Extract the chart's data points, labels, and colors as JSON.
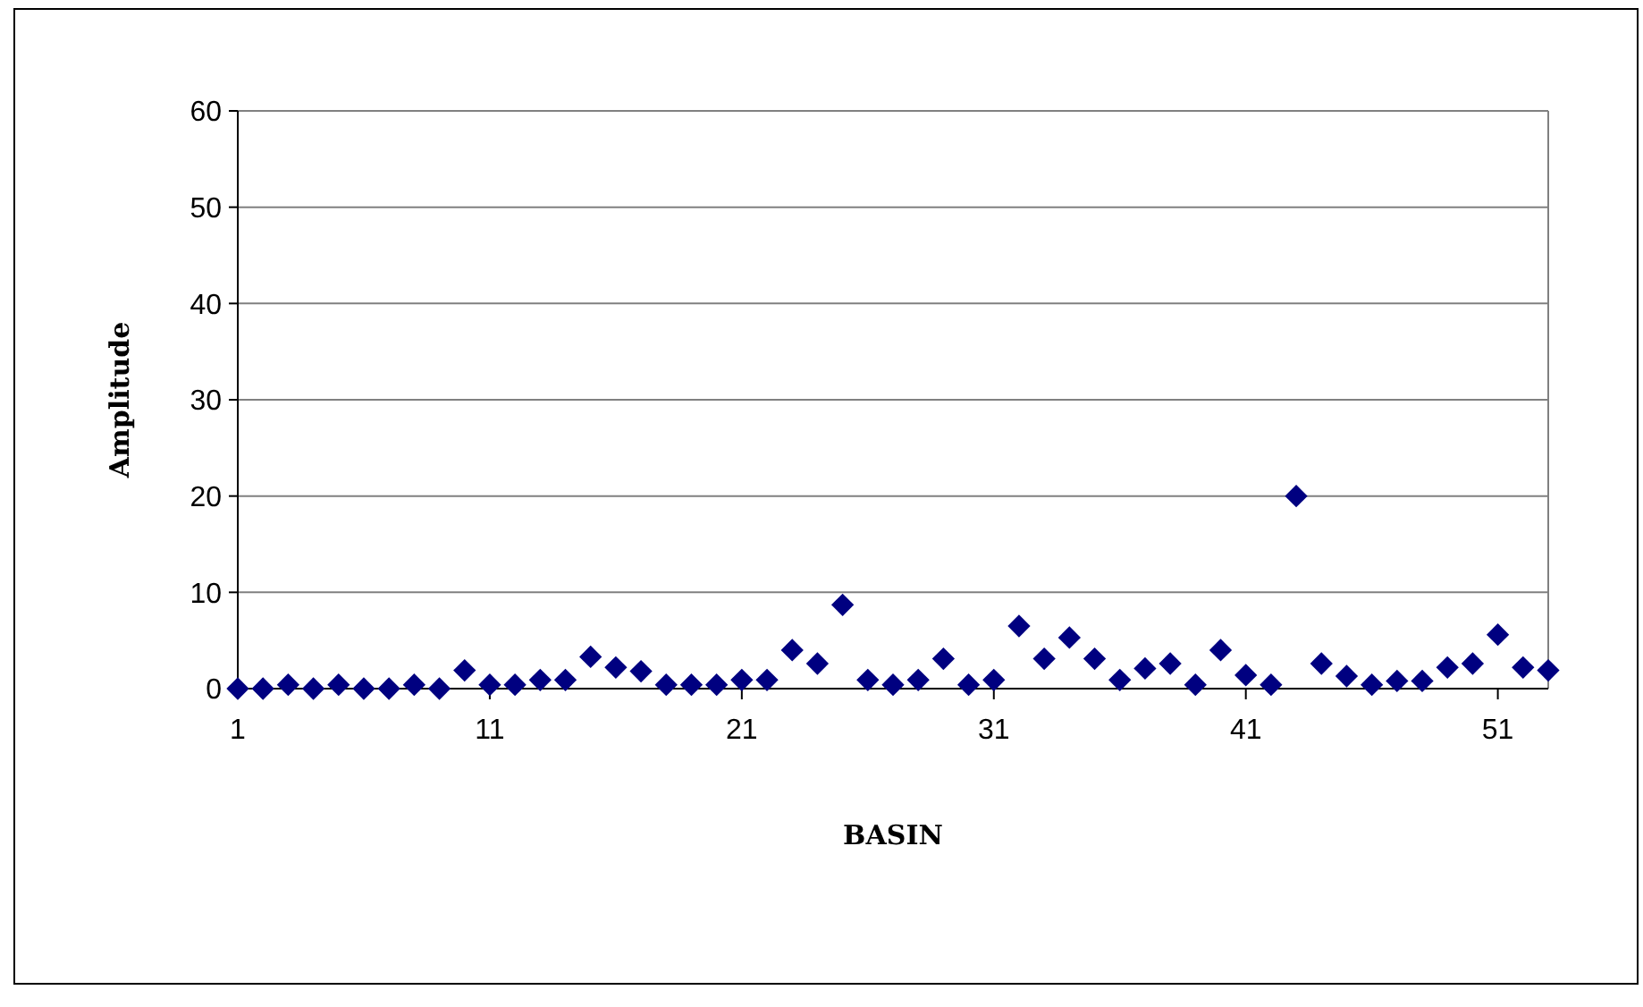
{
  "chart_data": {
    "type": "scatter",
    "xlabel": "BASIN",
    "ylabel": "Amplitude",
    "categories": [
      "1",
      null,
      null,
      null,
      null,
      null,
      null,
      null,
      null,
      null,
      "11",
      null,
      null,
      null,
      null,
      null,
      null,
      null,
      null,
      null,
      "21",
      null,
      null,
      null,
      null,
      null,
      null,
      null,
      null,
      null,
      "31",
      null,
      null,
      null,
      null,
      null,
      null,
      null,
      null,
      null,
      "41",
      null,
      null,
      null,
      null,
      null,
      null,
      null,
      null,
      null,
      "51",
      null,
      null
    ],
    "series": [
      {
        "color": "#000080",
        "values": [
          0,
          0,
          0.4,
          0,
          0.4,
          0,
          0,
          0.4,
          0,
          1.9,
          0.4,
          0.4,
          0.9,
          0.9,
          3.3,
          2.2,
          1.8,
          0.4,
          0.4,
          0.4,
          0.9,
          0.9,
          4.0,
          2.6,
          8.7,
          0.9,
          0.4,
          0.9,
          3.1,
          0.4,
          0.9,
          6.5,
          3.1,
          5.3,
          3.1,
          0.9,
          2.1,
          2.6,
          0.4,
          4.0,
          1.4,
          0.4,
          20,
          2.6,
          1.3,
          0.4,
          0.8,
          0.8,
          2.2,
          2.6,
          5.6,
          2.2,
          1.9
        ]
      }
    ],
    "ylim": [
      0,
      60
    ],
    "yticks": [
      0,
      10,
      20,
      30,
      40,
      50,
      60
    ],
    "grid": "y",
    "marker": "diamond"
  }
}
